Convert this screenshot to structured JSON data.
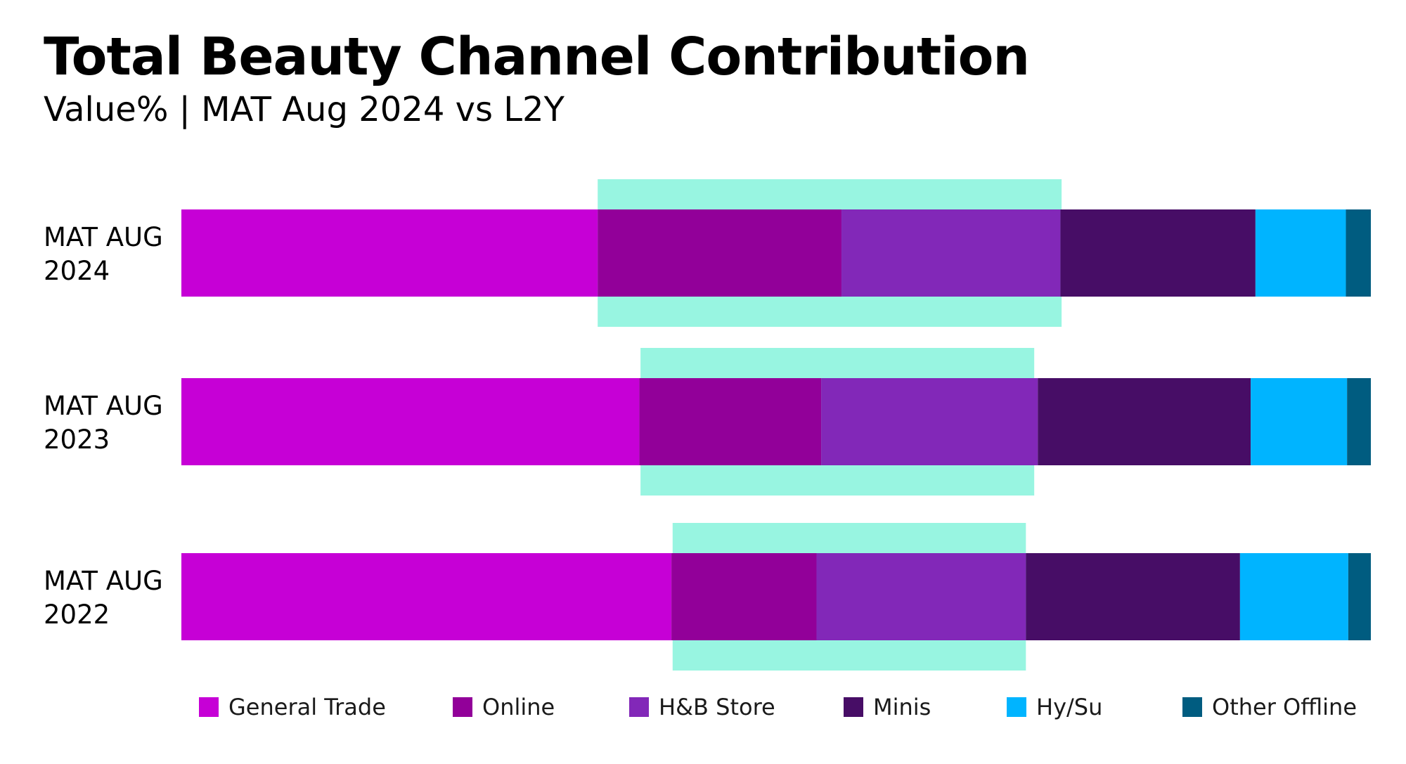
{
  "chart_data": {
    "type": "bar",
    "orientation": "horizontal",
    "stacked": true,
    "title": "Total Beauty Channel Contribution",
    "subtitle": "Value% | MAT Aug 2024 vs L2Y",
    "categories": [
      "MAT AUG\n2024",
      "MAT AUG\n2023",
      "MAT AUG\n2022"
    ],
    "series": [
      {
        "name": "General Trade",
        "color": "#C600D6",
        "values": [
          35.0,
          38.5,
          41.2
        ]
      },
      {
        "name": "Online",
        "color": "#920099",
        "values": [
          20.5,
          15.3,
          12.2
        ]
      },
      {
        "name": "H&B Store",
        "color": "#8228B8",
        "values": [
          18.4,
          18.2,
          17.6
        ]
      },
      {
        "name": "Minis",
        "color": "#470D66",
        "values": [
          16.4,
          17.9,
          18.0
        ]
      },
      {
        "name": "Hy/Su",
        "color": "#00B4FF",
        "values": [
          7.6,
          8.1,
          9.1
        ]
      },
      {
        "name": "Other Offline",
        "color": "#005C80",
        "values": [
          2.1,
          2.0,
          1.9
        ]
      }
    ],
    "highlight": {
      "color": "#98F5E1",
      "ranges": [
        [
          35.0,
          74.0
        ],
        [
          38.6,
          71.7
        ],
        [
          41.3,
          71.0
        ]
      ]
    },
    "xlim": [
      0,
      100
    ],
    "legend": "bottom",
    "grid": false
  }
}
